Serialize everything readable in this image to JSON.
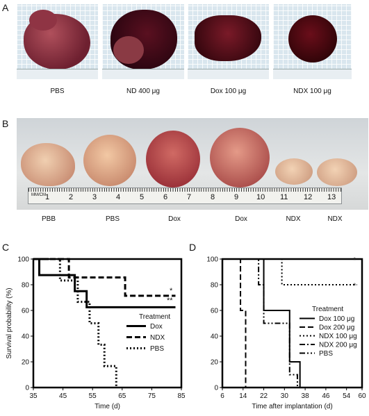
{
  "panels": {
    "a": {
      "letter": "A",
      "labels": [
        "PBS",
        "ND 400 μg",
        "Dox 100 μg",
        "NDX 100 μg"
      ]
    },
    "b": {
      "letter": "B",
      "ruler_numbers": [
        "1",
        "2",
        "3",
        "4",
        "5",
        "6",
        "7",
        "8",
        "9",
        "10",
        "11",
        "12",
        "13"
      ],
      "ruler_unit": "MM/CM",
      "labels": [
        "PBB",
        "PBS",
        "Dox",
        "Dox",
        "NDX",
        "NDX"
      ]
    },
    "c": {
      "letter": "C"
    },
    "d": {
      "letter": "D"
    }
  },
  "colors": {
    "tumor_dark": "#5a1020",
    "tumor_red": "#8a1f2c",
    "tumor_pale": "#e8c7a6",
    "grid_blue": "#d9e6ee"
  },
  "chart_data": [
    {
      "type": "line",
      "step": true,
      "ylabel": "Survival probability (%)",
      "xlabel": "Time (d)",
      "xlim": [
        35,
        85
      ],
      "ylim": [
        0,
        100
      ],
      "xticks": [
        35,
        45,
        55,
        65,
        75,
        85
      ],
      "yticks": [
        0,
        20,
        40,
        60,
        80,
        100
      ],
      "legend_title": "Treatment",
      "legend_position": "center-right",
      "annotations": [
        "*",
        "**"
      ],
      "series": [
        {
          "name": "Dox",
          "style": "solid",
          "x": [
            35,
            37,
            45,
            49,
            53,
            83
          ],
          "y": [
            100,
            87.5,
            87.5,
            75,
            62.5,
            62.5
          ]
        },
        {
          "name": "NDX",
          "style": "dashed",
          "x": [
            35,
            45,
            47,
            57,
            66,
            83
          ],
          "y": [
            100,
            100,
            85.7,
            85.7,
            71.4,
            71.4
          ]
        },
        {
          "name": "PBS",
          "style": "dotted",
          "x": [
            35,
            43,
            44,
            50,
            53,
            54,
            57,
            59,
            60,
            63
          ],
          "y": [
            100,
            100,
            83.3,
            66.7,
            66.7,
            50,
            33.3,
            16.7,
            16.7,
            0
          ]
        }
      ]
    },
    {
      "type": "line",
      "step": true,
      "xlabel": "Time after implantation (d)",
      "xlim": [
        6,
        60
      ],
      "ylim": [
        0,
        100
      ],
      "xticks": [
        6,
        14,
        22,
        30,
        38,
        46,
        54,
        60
      ],
      "yticks": [
        0,
        20,
        40,
        60,
        80,
        100
      ],
      "legend_title": "Treatment",
      "legend_position": "center-right",
      "annotations": [
        "*",
        "*"
      ],
      "series": [
        {
          "name": "Dox 100 μg",
          "style": "solid",
          "x": [
            6,
            22,
            26,
            32,
            34,
            36
          ],
          "y": [
            100,
            60,
            60,
            20,
            20,
            0
          ]
        },
        {
          "name": "Dox 200 μg",
          "style": "dashed",
          "x": [
            6,
            13,
            15
          ],
          "y": [
            100,
            60,
            0
          ]
        },
        {
          "name": "NDX 100 μg",
          "style": "dotted",
          "x": [
            6,
            27,
            29,
            58
          ],
          "y": [
            100,
            100,
            80,
            80
          ]
        },
        {
          "name": "NDX 200 μg",
          "style": "dash-dot",
          "x": [
            6,
            58
          ],
          "y": [
            100,
            100
          ]
        },
        {
          "name": "PBS",
          "style": "dash-dot-dot",
          "x": [
            6,
            20,
            22,
            26,
            32,
            34,
            35
          ],
          "y": [
            100,
            80,
            50,
            50,
            10,
            10,
            0
          ]
        }
      ]
    }
  ]
}
